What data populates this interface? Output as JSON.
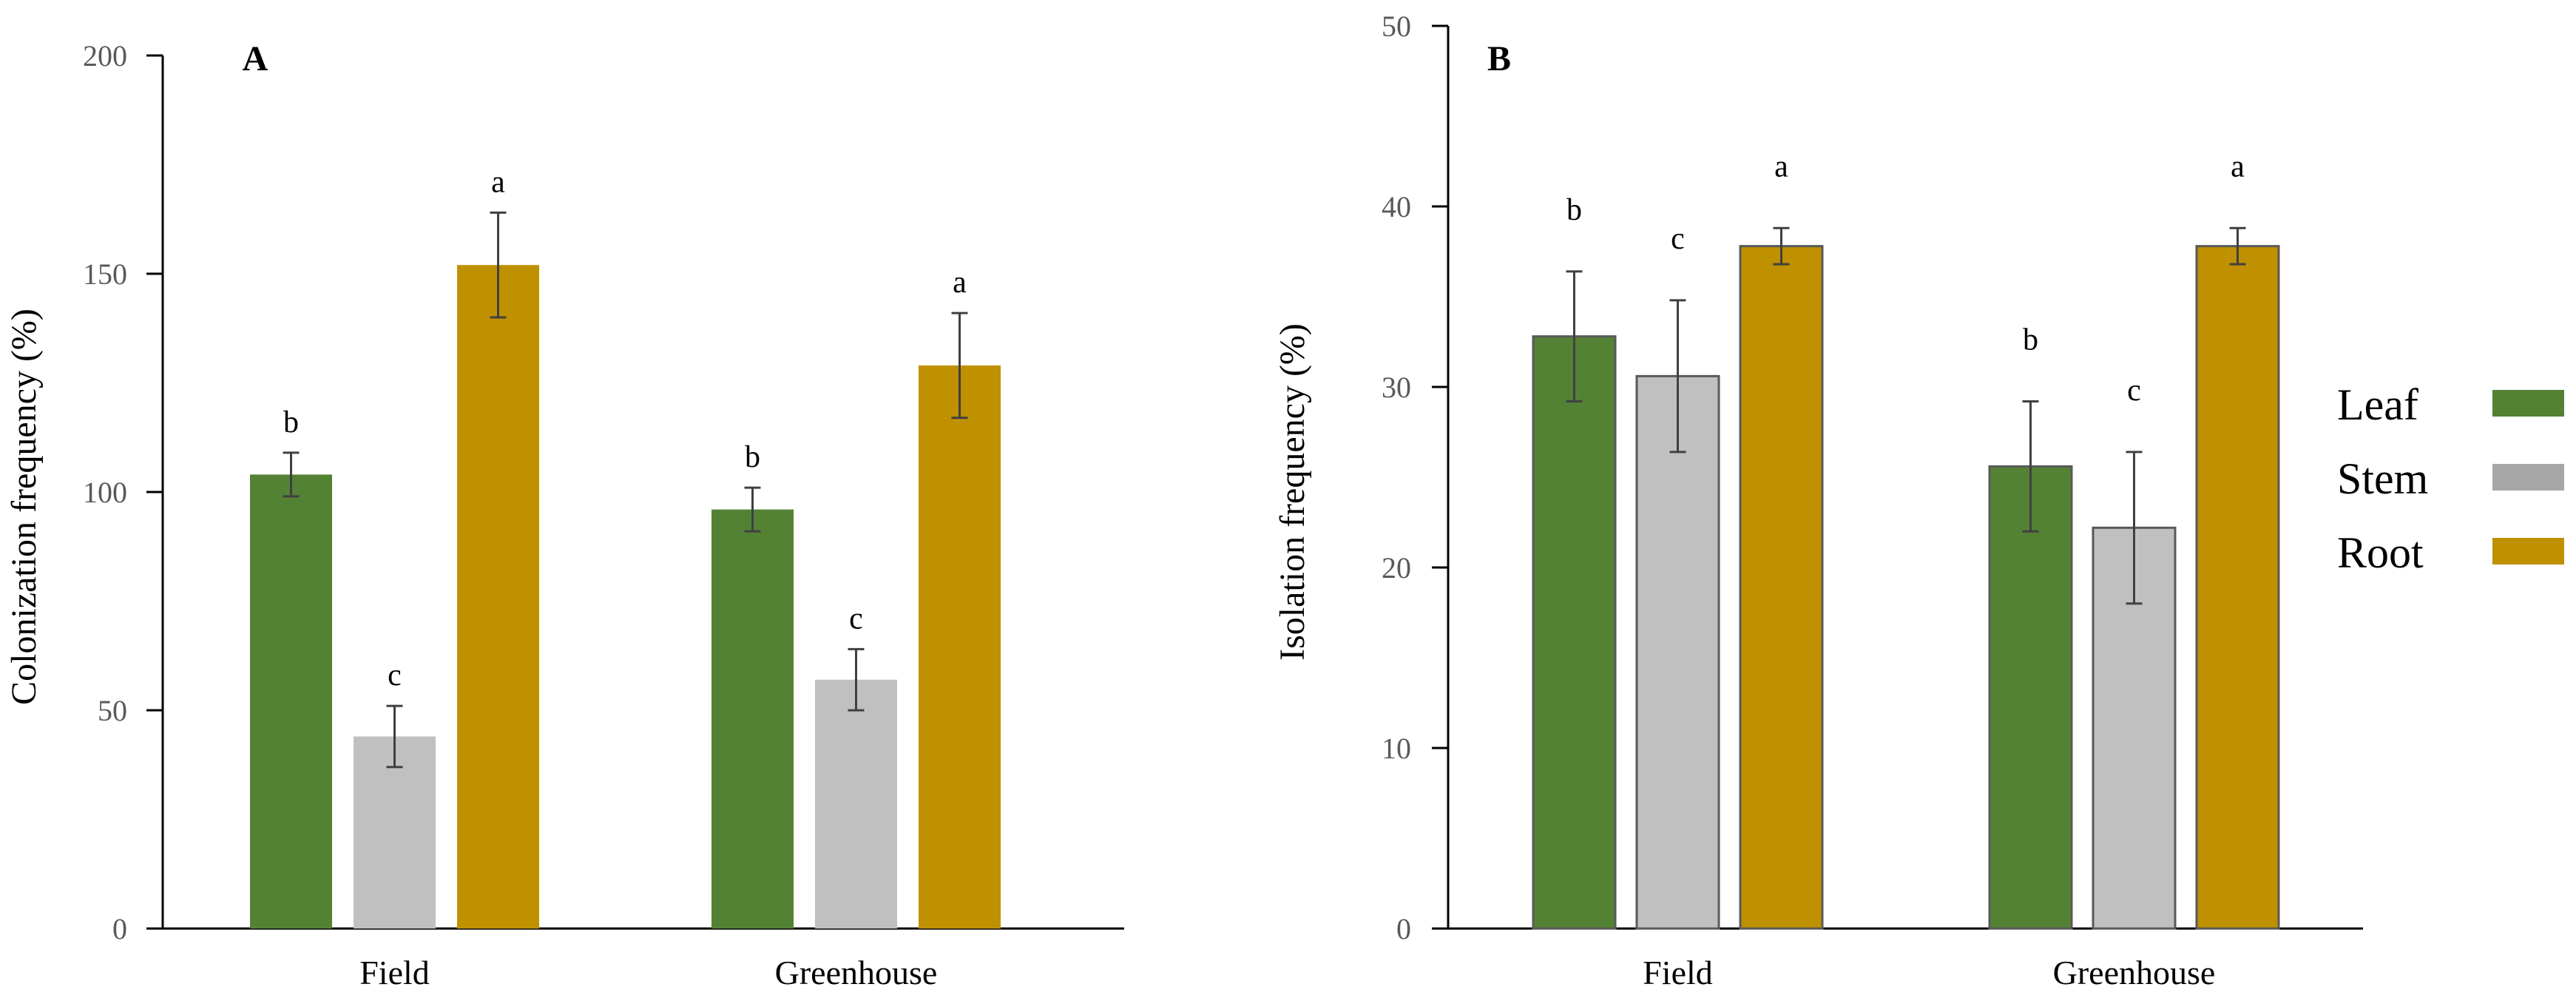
{
  "colors": {
    "Leaf": "#548235",
    "Stem": "#c0c0c0",
    "Root": "#bf9000",
    "axis": "#000000",
    "tick_label": "#595959",
    "error_bar": "#404040"
  },
  "legend": {
    "items": [
      {
        "name": "Leaf",
        "color": "#548235"
      },
      {
        "name": "Stem",
        "color": "#a6a6a6"
      },
      {
        "name": "Root",
        "color": "#bf9000"
      }
    ]
  },
  "chart_data": [
    {
      "type": "bar",
      "panel_label": "A",
      "title": "",
      "xlabel": "",
      "ylabel": "Colonization frequency (%)",
      "ylim": [
        0,
        200
      ],
      "yticks": [
        0,
        50,
        100,
        150,
        200
      ],
      "categories": [
        "Field",
        "Greenhouse"
      ],
      "series": [
        {
          "name": "Leaf",
          "values": [
            104,
            96
          ],
          "errors": [
            5,
            5
          ],
          "letters": [
            "b",
            "b"
          ]
        },
        {
          "name": "Stem",
          "values": [
            44,
            57
          ],
          "errors": [
            7,
            7
          ],
          "letters": [
            "c",
            "c"
          ]
        },
        {
          "name": "Root",
          "values": [
            152,
            129
          ],
          "errors": [
            12,
            12
          ],
          "letters": [
            "a",
            "a"
          ]
        }
      ]
    },
    {
      "type": "bar",
      "panel_label": "B",
      "title": "",
      "xlabel": "",
      "ylabel": "Isolation frequency (%)",
      "ylim": [
        0,
        50
      ],
      "yticks": [
        0,
        10,
        20,
        30,
        40,
        50
      ],
      "categories": [
        "Field",
        "Greenhouse"
      ],
      "series": [
        {
          "name": "Leaf",
          "values": [
            32.8,
            25.6
          ],
          "errors": [
            3.6,
            3.6
          ],
          "letters": [
            "b",
            "b"
          ]
        },
        {
          "name": "Stem",
          "values": [
            30.6,
            22.2
          ],
          "errors": [
            4.2,
            4.2
          ],
          "letters": [
            "c",
            "c"
          ]
        },
        {
          "name": "Root",
          "values": [
            37.8,
            37.8
          ],
          "errors": [
            1.0,
            1.0
          ],
          "letters": [
            "a",
            "a"
          ]
        }
      ]
    }
  ]
}
